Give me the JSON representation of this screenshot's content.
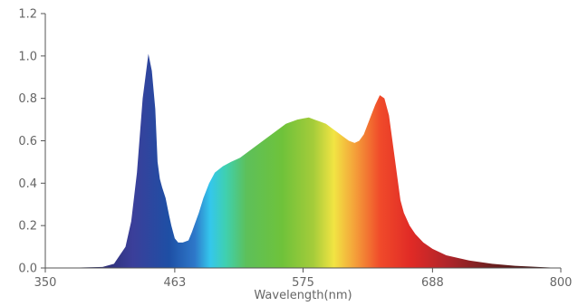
{
  "chart_data": {
    "type": "area",
    "title": "",
    "xlabel": "Wavelength(nm)",
    "ylabel": "",
    "xlim": [
      350,
      800
    ],
    "ylim": [
      0,
      1.2
    ],
    "x_ticks": [
      350,
      463,
      575,
      688,
      800
    ],
    "y_ticks": [
      0.0,
      0.2,
      0.4,
      0.6,
      0.8,
      1.0,
      1.2
    ],
    "x_tick_labels": [
      "350",
      "463",
      "575",
      "688",
      "800"
    ],
    "y_tick_labels": [
      "0.0",
      "0.2",
      "0.4",
      "0.6",
      "0.8",
      "1.0",
      "1.2"
    ],
    "grid": false,
    "fill": "wavelength-colored spectrum",
    "series": [
      {
        "x": [
          350,
          380,
          400,
          410,
          420,
          425,
          430,
          435,
          440,
          443,
          446,
          448,
          450,
          452,
          455,
          458,
          460,
          463,
          466,
          470,
          475,
          478,
          480,
          484,
          488,
          493,
          498,
          505,
          512,
          520,
          530,
          540,
          550,
          560,
          570,
          575,
          580,
          585,
          590,
          595,
          600,
          605,
          610,
          615,
          620,
          624,
          628,
          633,
          638,
          642,
          646,
          650,
          653,
          656,
          658,
          660,
          663,
          668,
          673,
          680,
          688,
          700,
          720,
          740,
          760,
          780,
          800
        ],
        "y": [
          0.0,
          0.002,
          0.005,
          0.02,
          0.1,
          0.22,
          0.45,
          0.8,
          1.01,
          0.93,
          0.75,
          0.5,
          0.42,
          0.38,
          0.33,
          0.25,
          0.2,
          0.14,
          0.12,
          0.12,
          0.13,
          0.17,
          0.2,
          0.26,
          0.33,
          0.4,
          0.45,
          0.48,
          0.5,
          0.52,
          0.56,
          0.6,
          0.64,
          0.68,
          0.7,
          0.705,
          0.71,
          0.7,
          0.69,
          0.68,
          0.66,
          0.64,
          0.62,
          0.6,
          0.59,
          0.6,
          0.63,
          0.7,
          0.77,
          0.815,
          0.8,
          0.72,
          0.6,
          0.48,
          0.4,
          0.32,
          0.26,
          0.2,
          0.16,
          0.12,
          0.09,
          0.06,
          0.035,
          0.02,
          0.01,
          0.005,
          0.0
        ]
      }
    ]
  }
}
